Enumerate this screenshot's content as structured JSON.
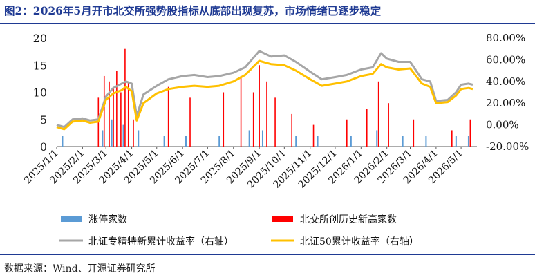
{
  "title": "图2：2026年5月开市北交所强势股指标从底部出现复苏，市场情绪已逐步稳定",
  "source": "数据来源：Wind、开源证券研究所",
  "colors": {
    "limit_up": "#5b9bd5",
    "new_high": "#ff0000",
    "specialized_index": "#a6a6a6",
    "bse50": "#ffc000",
    "title": "#1f3a93"
  },
  "chart_data": {
    "type": "bar+line",
    "left_axis": {
      "ylim": [
        0,
        20
      ],
      "ticks": [
        "0",
        "5",
        "10",
        "15",
        "20"
      ]
    },
    "right_axis": {
      "ylim": [
        -20,
        80
      ],
      "ticks": [
        "-20.00%",
        "0.00%",
        "20.00%",
        "40.00%",
        "60.00%",
        "80.00%"
      ]
    },
    "x_tick_labels": [
      "2025/1/1",
      "2025/2/1",
      "2025/3/1",
      "2025/4/1",
      "2025/5/1",
      "2025/6/1",
      "2025/7/1",
      "2025/8/1",
      "2025/9/1",
      "2025/10/1",
      "2025/11/1",
      "2025/12/1",
      "2026/1/1",
      "2026/2/1",
      "2026/3/1",
      "2026/4/1",
      "2026/5/1"
    ],
    "legend": [
      {
        "name": "涨停家数",
        "kind": "bar",
        "color": "#5b9bd5"
      },
      {
        "name": "北交所创历史新高家数",
        "kind": "bar",
        "color": "#ff0000"
      },
      {
        "name": "北证专精特新累计收益率（右轴）",
        "kind": "line",
        "color": "#a6a6a6"
      },
      {
        "name": "北证50累计收益率（右轴）",
        "kind": "line",
        "color": "#ffc000"
      }
    ],
    "series": [
      {
        "name": "北证专精特新累计收益率（右轴）",
        "axis": "right",
        "points": [
          [
            "2025/1/1",
            0
          ],
          [
            "2025/1/10",
            -2
          ],
          [
            "2025/1/20",
            5
          ],
          [
            "2025/2/1",
            6
          ],
          [
            "2025/2/10",
            4
          ],
          [
            "2025/2/20",
            5
          ],
          [
            "2025/3/1",
            26
          ],
          [
            "2025/3/10",
            34
          ],
          [
            "2025/3/20",
            38
          ],
          [
            "2025/3/25",
            40
          ],
          [
            "2025/4/1",
            38
          ],
          [
            "2025/4/7",
            8
          ],
          [
            "2025/4/15",
            28
          ],
          [
            "2025/5/1",
            36
          ],
          [
            "2025/5/15",
            42
          ],
          [
            "2025/6/1",
            45
          ],
          [
            "2025/6/15",
            46
          ],
          [
            "2025/7/1",
            44
          ],
          [
            "2025/7/15",
            45
          ],
          [
            "2025/8/1",
            48
          ],
          [
            "2025/8/15",
            53
          ],
          [
            "2025/9/1",
            68
          ],
          [
            "2025/9/15",
            63
          ],
          [
            "2025/10/1",
            64
          ],
          [
            "2025/10/15",
            58
          ],
          [
            "2025/11/1",
            49
          ],
          [
            "2025/11/15",
            42
          ],
          [
            "2025/12/1",
            44
          ],
          [
            "2025/12/15",
            46
          ],
          [
            "2026/1/1",
            51
          ],
          [
            "2026/1/15",
            53
          ],
          [
            "2026/1/25",
            66
          ],
          [
            "2026/2/1",
            61
          ],
          [
            "2026/2/15",
            58
          ],
          [
            "2026/3/1",
            58
          ],
          [
            "2026/3/15",
            42
          ],
          [
            "2026/3/25",
            40
          ],
          [
            "2026/4/1",
            22
          ],
          [
            "2026/4/15",
            23
          ],
          [
            "2026/4/25",
            30
          ],
          [
            "2026/5/1",
            37
          ],
          [
            "2026/5/10",
            38
          ],
          [
            "2026/5/15",
            37
          ]
        ]
      },
      {
        "name": "北证50累计收益率（右轴）",
        "axis": "right",
        "points": [
          [
            "2025/1/1",
            -2
          ],
          [
            "2025/1/10",
            -4
          ],
          [
            "2025/1/20",
            3
          ],
          [
            "2025/2/1",
            4
          ],
          [
            "2025/2/10",
            2
          ],
          [
            "2025/2/20",
            3
          ],
          [
            "2025/3/1",
            23
          ],
          [
            "2025/3/10",
            29
          ],
          [
            "2025/3/20",
            32
          ],
          [
            "2025/3/25",
            35
          ],
          [
            "2025/4/1",
            31
          ],
          [
            "2025/4/7",
            4
          ],
          [
            "2025/4/15",
            20
          ],
          [
            "2025/5/1",
            29
          ],
          [
            "2025/5/15",
            33
          ],
          [
            "2025/6/1",
            35
          ],
          [
            "2025/6/15",
            36
          ],
          [
            "2025/7/1",
            35
          ],
          [
            "2025/7/15",
            36
          ],
          [
            "2025/8/1",
            40
          ],
          [
            "2025/8/15",
            46
          ],
          [
            "2025/9/1",
            59
          ],
          [
            "2025/9/15",
            56
          ],
          [
            "2025/10/1",
            55
          ],
          [
            "2025/10/15",
            50
          ],
          [
            "2025/11/1",
            42
          ],
          [
            "2025/11/15",
            36
          ],
          [
            "2025/12/1",
            38
          ],
          [
            "2025/12/15",
            40
          ],
          [
            "2026/1/1",
            45
          ],
          [
            "2026/1/15",
            47
          ],
          [
            "2026/1/25",
            56
          ],
          [
            "2026/2/1",
            53
          ],
          [
            "2026/2/15",
            51
          ],
          [
            "2026/3/1",
            52
          ],
          [
            "2026/3/15",
            38
          ],
          [
            "2026/3/25",
            35
          ],
          [
            "2026/4/1",
            20
          ],
          [
            "2026/4/15",
            21
          ],
          [
            "2026/4/25",
            27
          ],
          [
            "2026/5/1",
            33
          ],
          [
            "2026/5/10",
            34
          ],
          [
            "2026/5/15",
            33
          ]
        ]
      },
      {
        "name": "北交所创历史新高家数",
        "axis": "left",
        "points": [
          [
            "2025/2/20",
            9
          ],
          [
            "2025/2/27",
            13
          ],
          [
            "2025/3/5",
            12
          ],
          [
            "2025/3/10",
            11
          ],
          [
            "2025/3/14",
            14
          ],
          [
            "2025/3/19",
            10
          ],
          [
            "2025/3/24",
            18
          ],
          [
            "2025/3/28",
            12
          ],
          [
            "2025/4/3",
            5
          ],
          [
            "2025/5/15",
            11
          ],
          [
            "2025/6/10",
            9
          ],
          [
            "2025/7/20",
            10
          ],
          [
            "2025/8/10",
            13
          ],
          [
            "2025/8/25",
            10
          ],
          [
            "2025/9/1",
            15
          ],
          [
            "2025/9/10",
            12
          ],
          [
            "2025/9/20",
            9
          ],
          [
            "2025/10/10",
            6
          ],
          [
            "2025/11/5",
            4
          ],
          [
            "2025/12/15",
            5
          ],
          [
            "2026/1/8",
            7
          ],
          [
            "2026/1/22",
            12
          ],
          [
            "2026/2/3",
            8
          ],
          [
            "2026/3/5",
            5
          ],
          [
            "2026/4/20",
            3
          ],
          [
            "2026/5/12",
            5
          ]
        ]
      },
      {
        "name": "涨停家数",
        "axis": "left",
        "points": [
          [
            "2025/1/8",
            2
          ],
          [
            "2025/2/25",
            3
          ],
          [
            "2025/3/8",
            5
          ],
          [
            "2025/3/22",
            4
          ],
          [
            "2025/4/9",
            3
          ],
          [
            "2025/5/10",
            2
          ],
          [
            "2025/6/5",
            2
          ],
          [
            "2025/7/15",
            2
          ],
          [
            "2025/8/20",
            3
          ],
          [
            "2025/9/5",
            3
          ],
          [
            "2025/10/15",
            2
          ],
          [
            "2025/11/10",
            2
          ],
          [
            "2025/12/20",
            2
          ],
          [
            "2026/1/20",
            3
          ],
          [
            "2026/2/20",
            2
          ],
          [
            "2026/3/20",
            2
          ],
          [
            "2026/4/25",
            2
          ],
          [
            "2026/5/10",
            2
          ]
        ]
      }
    ]
  }
}
